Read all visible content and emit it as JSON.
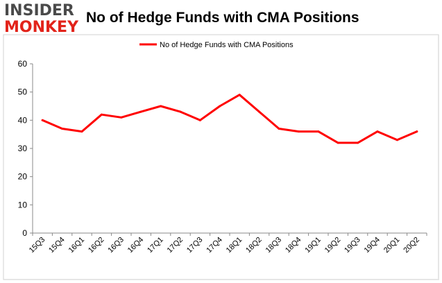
{
  "logo": {
    "line1": "INSIDER",
    "line2": "MONKEY"
  },
  "chart_data": {
    "type": "line",
    "title": "No of Hedge Funds with CMA Positions",
    "legend": "No of Hedge Funds with CMA Positions",
    "legend_position": "top",
    "categories": [
      "15Q3",
      "15Q4",
      "16Q1",
      "16Q2",
      "16Q3",
      "16Q4",
      "17Q1",
      "17Q2",
      "17Q3",
      "17Q4",
      "18Q1",
      "18Q2",
      "18Q3",
      "18Q4",
      "19Q1",
      "19Q2",
      "19Q3",
      "19Q4",
      "20Q1",
      "20Q2"
    ],
    "series": [
      {
        "name": "No of Hedge Funds with CMA Positions",
        "values": [
          40,
          37,
          36,
          42,
          41,
          43,
          45,
          43,
          40,
          45,
          49,
          43,
          37,
          36,
          36,
          32,
          32,
          36,
          33,
          36
        ],
        "color": "#ff0000"
      }
    ],
    "ylim": [
      0,
      60
    ],
    "yticks": [
      0,
      10,
      20,
      30,
      40,
      50,
      60
    ],
    "grid": false,
    "xlabel": "",
    "ylabel": ""
  }
}
